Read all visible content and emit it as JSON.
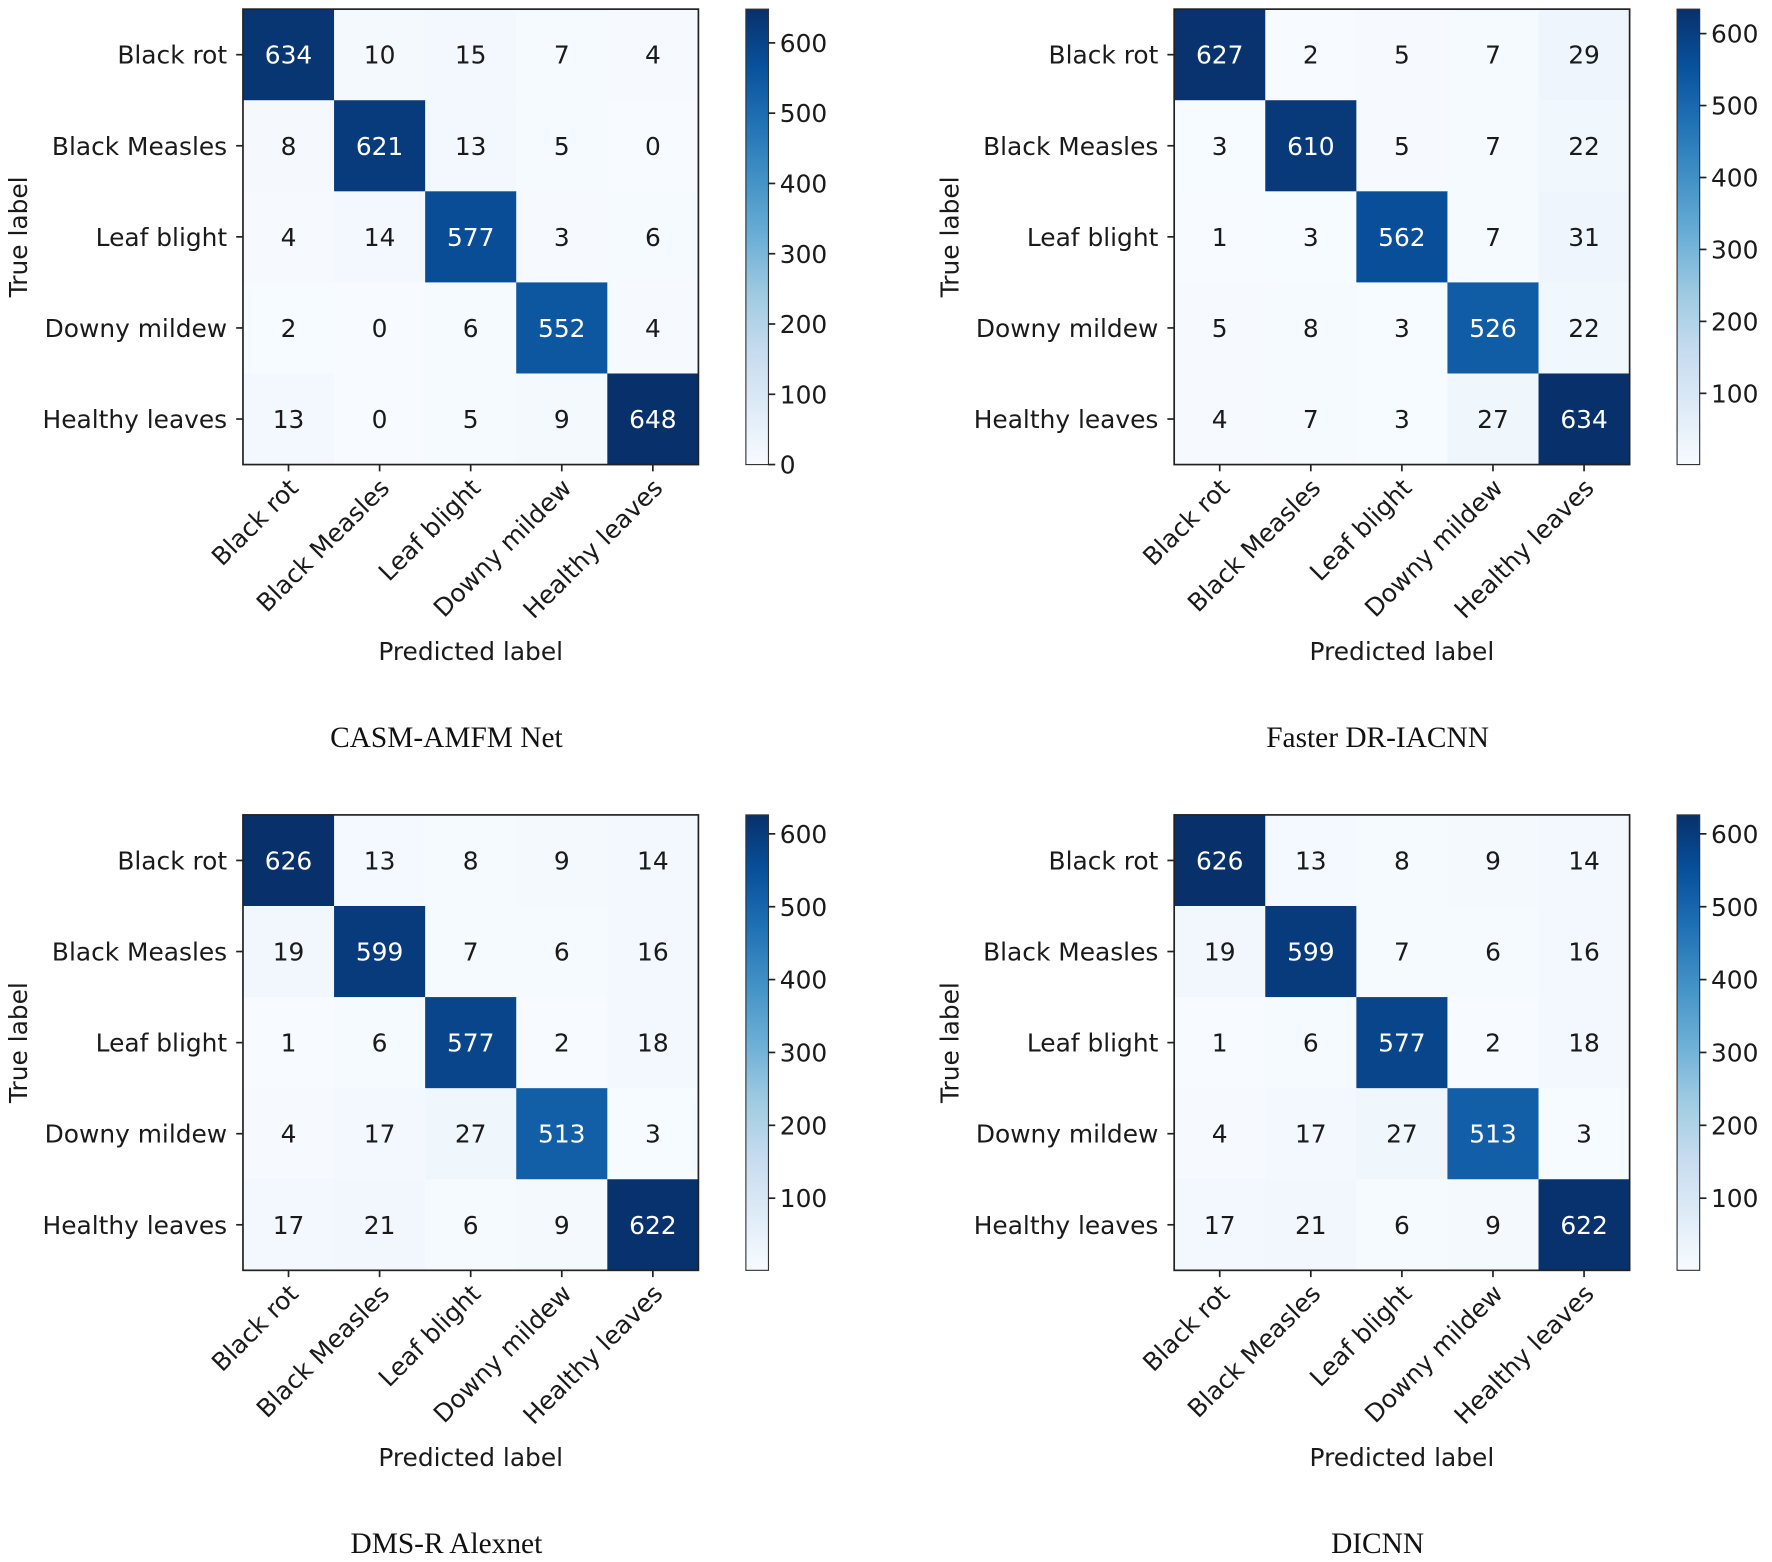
{
  "chart_data": [
    {
      "type": "heatmap",
      "title": "CASM-AMFM Net",
      "xlabel": "Predicted label",
      "ylabel": "True label",
      "x_categories": [
        "Black rot",
        "Black Measles",
        "Leaf blight",
        "Downy mildew",
        "Healthy leaves"
      ],
      "y_categories": [
        "Black rot",
        "Black Measles",
        "Leaf blight",
        "Downy mildew",
        "Healthy leaves"
      ],
      "values": [
        [
          634,
          10,
          15,
          7,
          4
        ],
        [
          8,
          621,
          13,
          5,
          0
        ],
        [
          4,
          14,
          577,
          3,
          6
        ],
        [
          2,
          0,
          6,
          552,
          4
        ],
        [
          13,
          0,
          5,
          9,
          648
        ]
      ],
      "colorbar": {
        "colormap": "Blues",
        "range": [
          0,
          648
        ],
        "ticks": [
          0,
          100,
          200,
          300,
          400,
          500,
          600
        ]
      }
    },
    {
      "type": "heatmap",
      "title": "Faster DR-IACNN",
      "xlabel": "Predicted label",
      "ylabel": "True label",
      "x_categories": [
        "Black rot",
        "Black Measles",
        "Leaf blight",
        "Downy mildew",
        "Healthy leaves"
      ],
      "y_categories": [
        "Black rot",
        "Black Measles",
        "Leaf blight",
        "Downy mildew",
        "Healthy leaves"
      ],
      "values": [
        [
          627,
          2,
          5,
          7,
          29
        ],
        [
          3,
          610,
          5,
          7,
          22
        ],
        [
          1,
          3,
          562,
          7,
          31
        ],
        [
          5,
          8,
          3,
          526,
          22
        ],
        [
          4,
          7,
          3,
          27,
          634
        ]
      ],
      "colorbar": {
        "colormap": "Blues",
        "range": [
          1,
          634
        ],
        "ticks": [
          100,
          200,
          300,
          400,
          500,
          600
        ]
      }
    },
    {
      "type": "heatmap",
      "title": "DMS-R Alexnet",
      "xlabel": "Predicted label",
      "ylabel": "True label",
      "x_categories": [
        "Black rot",
        "Black Measles",
        "Leaf blight",
        "Downy mildew",
        "Healthy leaves"
      ],
      "y_categories": [
        "Black rot",
        "Black Measles",
        "Leaf blight",
        "Downy mildew",
        "Healthy leaves"
      ],
      "values": [
        [
          626,
          13,
          8,
          9,
          14
        ],
        [
          19,
          599,
          7,
          6,
          16
        ],
        [
          1,
          6,
          577,
          2,
          18
        ],
        [
          4,
          17,
          27,
          513,
          3
        ],
        [
          17,
          21,
          6,
          9,
          622
        ]
      ],
      "colorbar": {
        "colormap": "Blues",
        "range": [
          1,
          626
        ],
        "ticks": [
          100,
          200,
          300,
          400,
          500,
          600
        ]
      }
    },
    {
      "type": "heatmap",
      "title": "DICNN",
      "xlabel": "Predicted label",
      "ylabel": "True label",
      "x_categories": [
        "Black rot",
        "Black Measles",
        "Leaf blight",
        "Downy mildew",
        "Healthy leaves"
      ],
      "y_categories": [
        "Black rot",
        "Black Measles",
        "Leaf blight",
        "Downy mildew",
        "Healthy leaves"
      ],
      "values": [
        [
          626,
          13,
          8,
          9,
          14
        ],
        [
          19,
          599,
          7,
          6,
          16
        ],
        [
          1,
          6,
          577,
          2,
          18
        ],
        [
          4,
          17,
          27,
          513,
          3
        ],
        [
          17,
          21,
          6,
          9,
          622
        ]
      ],
      "colorbar": {
        "colormap": "Blues",
        "range": [
          1,
          626
        ],
        "ticks": [
          100,
          200,
          300,
          400,
          500,
          600
        ]
      }
    }
  ]
}
